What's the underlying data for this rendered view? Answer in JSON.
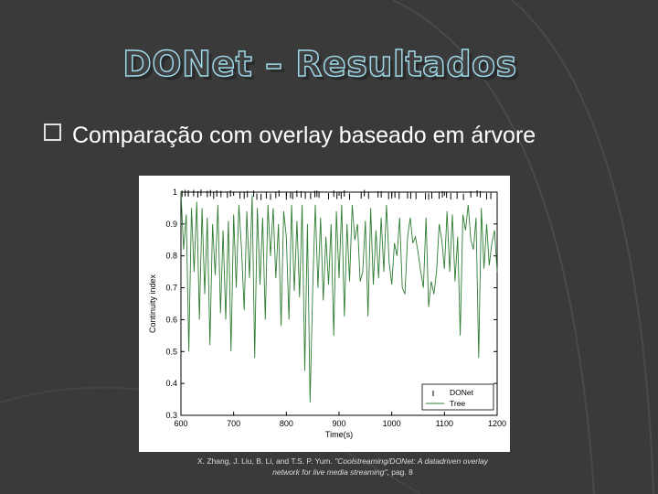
{
  "slide": {
    "title": "DONet – Resultados",
    "bullet": "Comparação com overlay baseado em árvore",
    "caption_authors": "X. Zhang, J. Liu, B. Li, and T.S. P. Yum. ",
    "caption_title": "\"Coolstreaming/DONet: A datadriven overlay network for live media streaming\"",
    "caption_page": ", pag. 8",
    "colors": {
      "background": "#3a3a3a",
      "title_outline": "#9fd8e8",
      "tree_line": "#2e7d32",
      "donet_marker": "#000000"
    }
  },
  "chart_data": {
    "type": "line",
    "title": "",
    "xlabel": "Time(s)",
    "ylabel": "Continuity index",
    "xlim": [
      600,
      1200
    ],
    "ylim": [
      0.3,
      1
    ],
    "xticks": [
      600,
      700,
      800,
      900,
      1000,
      1100,
      1200
    ],
    "yticks": [
      0.3,
      0.4,
      0.5,
      0.6,
      0.7,
      0.8,
      0.9,
      1
    ],
    "legend_position": "bottom-right",
    "series": [
      {
        "name": "DONet",
        "marker": "vertical-tick",
        "x": [
          602,
          608,
          614,
          624,
          632,
          638,
          650,
          656,
          662,
          668,
          676,
          688,
          694,
          712,
          720,
          726,
          738,
          744,
          752,
          762,
          770,
          780,
          786,
          800,
          808,
          812,
          820,
          828,
          836,
          846,
          854,
          858,
          862,
          880,
          890,
          896,
          904,
          910,
          920,
          942,
          948,
          956,
          974,
          980,
          994,
          1000,
          1006,
          1014,
          1030,
          1036,
          1046,
          1064,
          1070,
          1076,
          1090,
          1096,
          1104,
          1112,
          1124,
          1136,
          1150,
          1162,
          1168,
          1180,
          1188
        ],
        "y": [
          0.995,
          0.997,
          0.996,
          0.997,
          0.993,
          0.998,
          0.994,
          0.997,
          0.989,
          0.996,
          0.994,
          0.992,
          0.996,
          0.99,
          0.989,
          0.994,
          0.995,
          0.986,
          0.985,
          0.99,
          0.986,
          0.991,
          0.996,
          0.986,
          0.991,
          0.988,
          0.995,
          0.993,
          0.989,
          0.988,
          0.994,
          0.995,
          0.992,
          0.987,
          0.995,
          0.988,
          0.989,
          0.996,
          0.986,
          0.99,
          0.997,
          0.989,
          0.993,
          0.993,
          0.988,
          0.99,
          0.992,
          0.989,
          0.99,
          0.989,
          0.988,
          0.987,
          0.986,
          0.99,
          0.989,
          0.993,
          0.992,
          0.987,
          0.989,
          0.985,
          0.993,
          0.996,
          0.993,
          0.987,
          0.988
        ]
      },
      {
        "name": "Tree",
        "x": [
          600,
          605,
          610,
          615,
          620,
          625,
          630,
          635,
          640,
          645,
          650,
          655,
          660,
          665,
          670,
          675,
          680,
          685,
          690,
          695,
          700,
          705,
          710,
          715,
          720,
          725,
          730,
          735,
          740,
          745,
          750,
          755,
          760,
          765,
          770,
          775,
          780,
          785,
          790,
          795,
          800,
          805,
          810,
          815,
          820,
          825,
          830,
          835,
          840,
          845,
          850,
          855,
          860,
          865,
          870,
          875,
          880,
          885,
          890,
          895,
          900,
          905,
          910,
          915,
          920,
          925,
          930,
          935,
          940,
          945,
          950,
          955,
          960,
          965,
          970,
          975,
          980,
          985,
          990,
          995,
          1000,
          1005,
          1010,
          1015,
          1020,
          1025,
          1030,
          1035,
          1040,
          1045,
          1050,
          1055,
          1060,
          1065,
          1070,
          1075,
          1080,
          1085,
          1090,
          1095,
          1100,
          1105,
          1110,
          1115,
          1120,
          1125,
          1130,
          1135,
          1140,
          1145,
          1150,
          1155,
          1160,
          1165,
          1170,
          1175,
          1180,
          1185,
          1190,
          1195,
          1200
        ],
        "y": [
          1.0,
          0.82,
          0.93,
          0.5,
          0.95,
          0.75,
          0.97,
          0.6,
          0.95,
          0.68,
          0.92,
          0.52,
          0.9,
          0.74,
          0.96,
          0.62,
          0.88,
          0.6,
          0.91,
          0.5,
          0.93,
          0.7,
          0.96,
          0.82,
          0.63,
          0.94,
          0.73,
          0.99,
          0.48,
          0.95,
          0.71,
          0.92,
          0.6,
          0.96,
          0.8,
          0.95,
          0.73,
          0.9,
          0.58,
          0.94,
          0.86,
          0.6,
          0.96,
          0.69,
          0.91,
          0.67,
          0.96,
          0.44,
          0.9,
          0.34,
          0.7,
          0.96,
          0.7,
          0.92,
          0.66,
          0.86,
          0.71,
          0.9,
          0.55,
          0.94,
          0.73,
          0.96,
          0.61,
          0.9,
          0.72,
          0.96,
          0.85,
          0.9,
          0.72,
          0.75,
          0.91,
          0.61,
          0.95,
          0.71,
          0.88,
          0.73,
          0.92,
          0.75,
          0.96,
          0.78,
          0.71,
          0.84,
          0.8,
          0.92,
          0.7,
          0.68,
          0.86,
          0.92,
          0.84,
          0.86,
          0.81,
          0.75,
          0.7,
          0.92,
          0.64,
          0.72,
          0.68,
          0.75,
          0.9,
          0.85,
          0.76,
          0.94,
          0.75,
          0.93,
          0.72,
          0.86,
          0.55,
          0.93,
          0.88,
          0.96,
          0.85,
          0.82,
          0.92,
          0.48,
          0.95,
          0.76,
          0.9,
          0.77,
          0.84,
          0.88,
          0.75
        ]
      }
    ]
  }
}
